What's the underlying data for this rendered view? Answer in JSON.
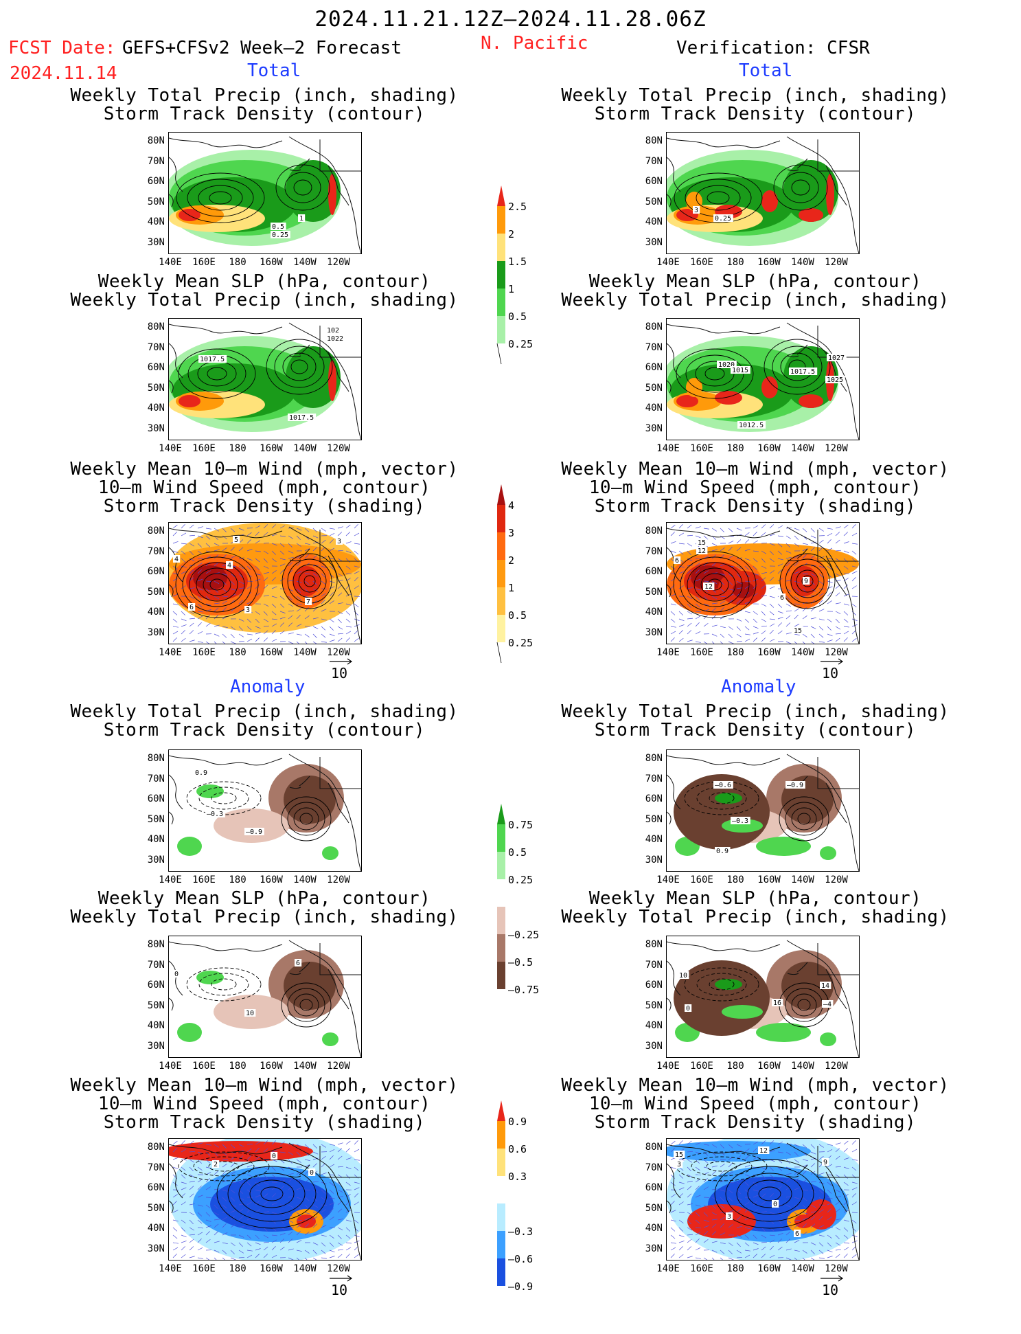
{
  "header": {
    "period": "2024.11.21.12Z–2024.11.28.06Z",
    "fcst_date_label": "FCST Date:",
    "fcst_model": "GEFS+CFSv2 Week–2 Forecast",
    "fcst_date": "2024.11.14",
    "region": "N. Pacific",
    "verification": "Verification: CFSR"
  },
  "section_labels": {
    "total": "Total",
    "anomaly": "Anomaly"
  },
  "titles": {
    "precip_track": [
      "Weekly Total Precip (inch, shading)",
      "Storm Track Density (contour)"
    ],
    "slp_precip": [
      "Weekly Mean SLP (hPa, contour)",
      "Weekly Total Precip (inch, shading)"
    ],
    "wind_track": [
      "Weekly Mean 10–m Wind (mph, vector)",
      "10–m Wind Speed (mph, contour)",
      "Storm Track Density (shading)"
    ]
  },
  "axes": {
    "lat_ticks": [
      "80N",
      "70N",
      "60N",
      "50N",
      "40N",
      "30N"
    ],
    "lon_ticks": [
      "140E",
      "160E",
      "180",
      "160W",
      "140W",
      "120W"
    ]
  },
  "vector_reference": "10",
  "colorbars": {
    "precip_total": {
      "labels": [
        "2.5",
        "2",
        "1.5",
        "1",
        "0.5",
        "0.25"
      ],
      "colors": [
        "#e8261a",
        "#ff9a0a",
        "#ffe27a",
        "#1a9b1a",
        "#4fd64f",
        "#a8f0a8"
      ]
    },
    "track_total": {
      "labels": [
        "4",
        "3",
        "2",
        "1",
        "0.5",
        "0.25"
      ],
      "colors": [
        "#a81010",
        "#e02810",
        "#ff6a10",
        "#ff9a10",
        "#ffc040",
        "#fff2a0"
      ]
    },
    "precip_anom": {
      "labels": [
        "0.75",
        "0.5",
        "0.25",
        "–0.25",
        "–0.5",
        "–0.75"
      ],
      "colors": [
        "#1a9b1a",
        "#4fd64f",
        "#a8f0a8",
        "#ffffff",
        "#e6c4b8",
        "#a87868",
        "#6a4030"
      ]
    },
    "track_anom": {
      "labels": [
        "0.9",
        "0.6",
        "0.3",
        "–0.3",
        "–0.6",
        "–0.9"
      ],
      "colors": [
        "#e8261a",
        "#ff9a0a",
        "#ffe27a",
        "#ffffff",
        "#b8ecff",
        "#3ca0ff",
        "#1a50e0"
      ]
    }
  },
  "panels": [
    {
      "id": "fcst-total-precip",
      "labels": [
        "0.5",
        "0.25",
        "1"
      ]
    },
    {
      "id": "fcst-total-slp",
      "labels": [
        "1017.5",
        "1022",
        "102",
        "1017.5"
      ]
    },
    {
      "id": "fcst-total-wind",
      "labels": [
        "5",
        "4",
        "3",
        "6",
        "7",
        "3",
        "4"
      ]
    },
    {
      "id": "fcst-anom-precip",
      "labels": [
        "0.9",
        "–0.3",
        "–0.9"
      ]
    },
    {
      "id": "fcst-anom-slp",
      "labels": [
        "10",
        "6",
        "0"
      ]
    },
    {
      "id": "fcst-anom-wind",
      "labels": [
        "2",
        "0",
        "0"
      ]
    },
    {
      "id": "ver-total-precip",
      "labels": [
        "3",
        "0.25"
      ]
    },
    {
      "id": "ver-total-slp",
      "labels": [
        "1020",
        "1015",
        "1017.5",
        "1027",
        "1025",
        "1012.5"
      ]
    },
    {
      "id": "ver-total-wind",
      "labels": [
        "15",
        "12",
        "6",
        "12",
        "9",
        "6",
        "15"
      ]
    },
    {
      "id": "ver-anom-precip",
      "labels": [
        "–0.6",
        "–0.9",
        "–0.3",
        "0.9"
      ]
    },
    {
      "id": "ver-anom-slp",
      "labels": [
        "10",
        "16",
        "14",
        "–4",
        "0"
      ]
    },
    {
      "id": "ver-anom-wind",
      "labels": [
        "12",
        "15",
        "3",
        "0",
        "3",
        "9",
        "6"
      ]
    }
  ]
}
